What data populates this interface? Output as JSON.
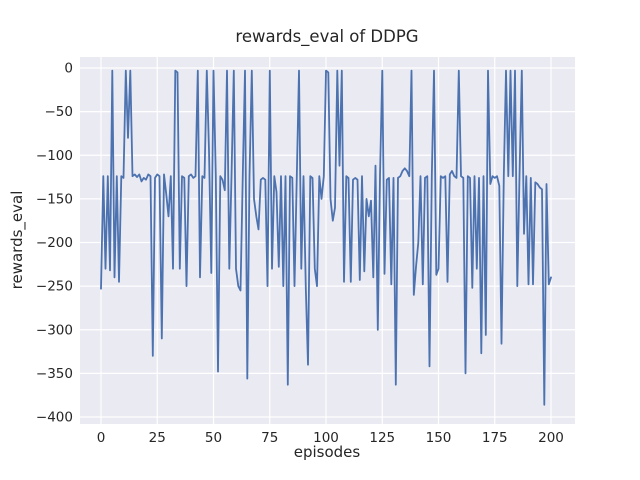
{
  "figure": {
    "title": "rewards_eval of DDPG",
    "background": "#ffffff",
    "axes_background": "#eaeaf2",
    "grid_color": "#ffffff",
    "text_color": "#262626"
  },
  "chart_data": {
    "type": "line",
    "title": "rewards_eval of DDPG",
    "xlabel": "episodes",
    "ylabel": "rewards_eval",
    "grid": true,
    "legend_visible": false,
    "x_ticks": [
      0,
      25,
      50,
      75,
      100,
      125,
      150,
      175,
      200
    ],
    "y_ticks": [
      0,
      -50,
      -100,
      -150,
      -200,
      -250,
      -300,
      -350,
      -400
    ],
    "xlim": [
      -10,
      210
    ],
    "ylim": [
      -408,
      13
    ],
    "series": [
      {
        "name": "rewards_eval",
        "color": "#4c72b0",
        "x_start": 0,
        "x_step": 1,
        "values": [
          -253,
          -124,
          -230,
          -124,
          -232,
          -3,
          -240,
          -124,
          -245,
          -124,
          -126,
          -3,
          -80,
          -3,
          -124,
          -122,
          -125,
          -122,
          -130,
          -126,
          -128,
          -122,
          -124,
          -330,
          -126,
          -122,
          -124,
          -310,
          -122,
          -145,
          -170,
          -124,
          -230,
          -3,
          -5,
          -230,
          -124,
          -126,
          -250,
          -124,
          -122,
          -126,
          -124,
          -3,
          -240,
          -124,
          -126,
          -3,
          -95,
          -235,
          -3,
          -124,
          -348,
          -124,
          -128,
          -140,
          -3,
          -230,
          -124,
          -3,
          -230,
          -250,
          -255,
          -122,
          -3,
          -356,
          -124,
          -3,
          -150,
          -170,
          -185,
          -128,
          -126,
          -128,
          -250,
          -3,
          -230,
          -124,
          -142,
          -228,
          -124,
          -250,
          -124,
          -363,
          -124,
          -126,
          -250,
          -124,
          -3,
          -230,
          -124,
          -252,
          -340,
          -124,
          -126,
          -230,
          -250,
          -124,
          -150,
          -124,
          -3,
          -5,
          -150,
          -175,
          -160,
          -3,
          -112,
          -3,
          -245,
          -124,
          -126,
          -245,
          -128,
          -126,
          -128,
          -243,
          -124,
          -233,
          -150,
          -170,
          -152,
          -240,
          -112,
          -300,
          -124,
          -3,
          -236,
          -128,
          -126,
          -248,
          -126,
          -363,
          -126,
          -124,
          -118,
          -115,
          -118,
          -124,
          -3,
          -260,
          -228,
          -200,
          -124,
          -248,
          -126,
          -124,
          -342,
          -124,
          -3,
          -237,
          -230,
          -124,
          -126,
          -124,
          -245,
          -122,
          -118,
          -124,
          -126,
          -3,
          -124,
          -126,
          -350,
          -124,
          -126,
          -252,
          -124,
          -230,
          -126,
          -327,
          -124,
          -306,
          -3,
          -133,
          -124,
          -126,
          -124,
          -135,
          -316,
          -124,
          -3,
          -124,
          -3,
          -124,
          -3,
          -250,
          -124,
          -3,
          -190,
          -124,
          -248,
          -126,
          -248,
          -131,
          -133,
          -137,
          -139,
          -386,
          -133,
          -248,
          -240
        ]
      }
    ]
  }
}
